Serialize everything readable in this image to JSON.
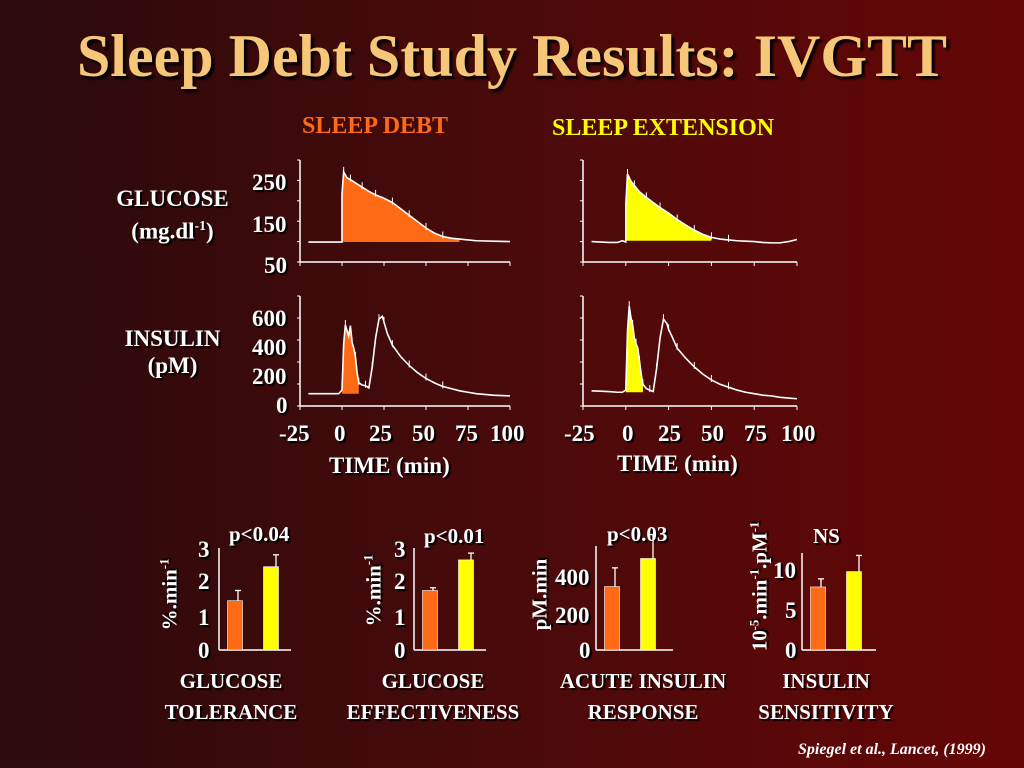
{
  "slide": {
    "title": "Sleep Debt Study Results: IVGTT",
    "condition_debt": "SLEEP  DEBT",
    "condition_extension": "SLEEP  EXTENSION",
    "glucose_label_line1": "GLUCOSE",
    "glucose_label_line2": "(mg.dl",
    "glucose_label_sup": "-1",
    "glucose_label_close": ")",
    "insulin_label_line1": "INSULIN",
    "insulin_label_line2": "(pM)",
    "time_label": "TIME (min)",
    "citation": "Spiegel et al., Lancet, (1999)"
  },
  "colors": {
    "debt": "#ff6a14",
    "extension": "#ffff00",
    "title": "#f6c779",
    "line": "#ffffff"
  },
  "chart_data": [
    {
      "type": "line",
      "panel": "glucose-sleep-debt",
      "xlabel": "TIME (min)",
      "ylabel": "GLUCOSE (mg.dl-1)",
      "xticks": [
        "-25",
        "0",
        "25",
        "50",
        "75",
        "100"
      ],
      "yticks": [
        "250",
        "150",
        "50"
      ],
      "xlim": [
        -25,
        100
      ],
      "ylim": [
        50,
        290
      ],
      "shaded_color": "debt",
      "x": [
        -20,
        -2,
        0,
        0,
        1,
        3,
        5,
        8,
        12,
        16,
        20,
        25,
        30,
        35,
        40,
        45,
        50,
        55,
        60,
        65,
        70,
        75,
        80,
        90,
        100
      ],
      "y": [
        97,
        97,
        97,
        210,
        262,
        248,
        244,
        236,
        226,
        216,
        208,
        200,
        190,
        175,
        160,
        145,
        130,
        118,
        110,
        106,
        104,
        102,
        100,
        99,
        98
      ],
      "shade_x": [
        0,
        70
      ]
    },
    {
      "type": "line",
      "panel": "glucose-sleep-extension",
      "xlabel": "TIME (min)",
      "ylabel": "GLUCOSE (mg.dl-1)",
      "xticks": [
        "-25",
        "0",
        "25",
        "50",
        "75",
        "100"
      ],
      "yticks": [],
      "xlim": [
        -25,
        100
      ],
      "ylim": [
        50,
        290
      ],
      "shaded_color": "extension",
      "x": [
        -20,
        -10,
        -5,
        -2,
        0,
        0,
        1,
        3,
        5,
        8,
        12,
        16,
        20,
        25,
        30,
        35,
        40,
        45,
        50,
        55,
        60,
        65,
        70,
        75,
        80,
        85,
        90,
        95,
        100
      ],
      "y": [
        98,
        96,
        96,
        100,
        97,
        185,
        257,
        240,
        230,
        215,
        202,
        190,
        178,
        165,
        150,
        137,
        125,
        115,
        108,
        104,
        102,
        100,
        99,
        98,
        96,
        95,
        95,
        98,
        103
      ],
      "shade_x": [
        0,
        50
      ]
    },
    {
      "type": "line",
      "panel": "insulin-sleep-debt",
      "xlabel": "TIME (min)",
      "ylabel": "INSULIN (pM)",
      "xticks": [
        "-25",
        "0",
        "25",
        "50",
        "75",
        "100"
      ],
      "yticks": [
        "600",
        "400",
        "200",
        "0"
      ],
      "xlim": [
        -25,
        100
      ],
      "ylim": [
        0,
        760
      ],
      "shaded_color": "debt",
      "x": [
        -20,
        -2,
        0,
        1,
        2,
        3,
        4,
        5,
        6,
        7,
        8,
        9,
        10,
        12,
        14,
        16,
        18,
        20,
        22,
        24,
        25,
        27,
        30,
        35,
        40,
        45,
        50,
        55,
        60,
        65,
        70,
        75,
        80,
        85,
        90,
        95,
        100
      ],
      "y": [
        85,
        85,
        110,
        430,
        560,
        520,
        480,
        555,
        440,
        400,
        340,
        230,
        160,
        145,
        140,
        125,
        270,
        470,
        600,
        620,
        580,
        500,
        420,
        340,
        280,
        230,
        190,
        160,
        135,
        120,
        105,
        95,
        85,
        80,
        75,
        72,
        70
      ],
      "shade_x": [
        0,
        10
      ]
    },
    {
      "type": "line",
      "panel": "insulin-sleep-extension",
      "xlabel": "TIME (min)",
      "ylabel": "INSULIN (pM)",
      "xticks": [
        "-25",
        "0",
        "25",
        "50",
        "75",
        "100"
      ],
      "yticks": [],
      "xlim": [
        -25,
        100
      ],
      "ylim": [
        0,
        760
      ],
      "shaded_color": "extension",
      "x": [
        -20,
        -10,
        -5,
        -2,
        0,
        1,
        2,
        3,
        4,
        5,
        6,
        7,
        8,
        9,
        10,
        12,
        14,
        16,
        18,
        20,
        22,
        24,
        25,
        27,
        30,
        35,
        40,
        45,
        50,
        55,
        60,
        65,
        70,
        75,
        80,
        85,
        90,
        95,
        100
      ],
      "y": [
        105,
        100,
        95,
        95,
        110,
        520,
        690,
        610,
        560,
        470,
        430,
        400,
        310,
        220,
        150,
        120,
        110,
        100,
        260,
        470,
        600,
        570,
        530,
        480,
        400,
        330,
        270,
        220,
        180,
        150,
        130,
        110,
        95,
        85,
        75,
        70,
        60,
        55,
        50
      ],
      "shade_x": [
        0,
        10
      ]
    },
    {
      "type": "bar",
      "panel": "glucose-tolerance",
      "category_label": [
        "GLUCOSE",
        "TOLERANCE"
      ],
      "ylabel": "%.min-1",
      "p_value": "p<0.04",
      "yticks": [
        "3",
        "2",
        "1",
        "0"
      ],
      "ylim": [
        0,
        3
      ],
      "values": [
        1.45,
        2.45
      ],
      "errors": [
        0.3,
        0.35
      ],
      "colors": [
        "debt",
        "extension"
      ]
    },
    {
      "type": "bar",
      "panel": "glucose-effectiveness",
      "category_label": [
        "GLUCOSE",
        "EFFECTIVENESS"
      ],
      "ylabel": "%.min-1",
      "p_value": "p<0.01",
      "yticks": [
        "3",
        "2",
        "1",
        "0"
      ],
      "ylim": [
        0,
        3
      ],
      "values": [
        1.75,
        2.65
      ],
      "errors": [
        0.08,
        0.2
      ],
      "colors": [
        "debt",
        "extension"
      ]
    },
    {
      "type": "bar",
      "panel": "acute-insulin-response",
      "category_label": [
        "ACUTE INSULIN",
        "RESPONSE"
      ],
      "ylabel": "pM.min",
      "p_value": "p<0.03",
      "yticks": [
        "400",
        "200",
        "0"
      ],
      "ylim": [
        0,
        500
      ],
      "values": [
        305,
        440
      ],
      "errors": [
        90,
        115
      ],
      "colors": [
        "debt",
        "extension"
      ]
    },
    {
      "type": "bar",
      "panel": "insulin-sensitivity",
      "category_label": [
        "INSULIN",
        "SENSITIVITY"
      ],
      "ylabel": "10-5.min-1.pM-1",
      "p_value": "NS",
      "yticks": [
        "10",
        "5",
        "0"
      ],
      "ylim": [
        0,
        12
      ],
      "values": [
        7.8,
        9.7
      ],
      "errors": [
        1.0,
        2.0
      ],
      "colors": [
        "debt",
        "extension"
      ]
    }
  ]
}
